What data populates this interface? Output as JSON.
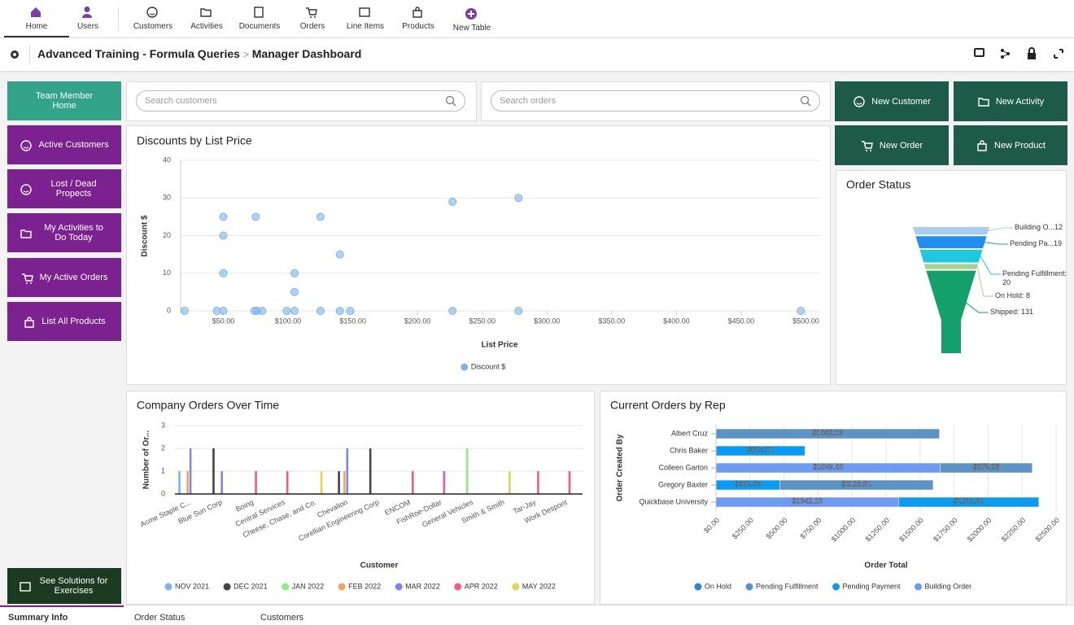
{
  "nav": {
    "items": [
      "Home",
      "Users",
      "Customers",
      "Activities",
      "Documents",
      "Orders",
      "Line Items",
      "Products",
      "New Table"
    ]
  },
  "header": {
    "app_title": "Advanced Training - Formula Queries",
    "separator": ">",
    "page_title": "Manager Dashboard"
  },
  "sidebar": {
    "buttons": [
      "Team Member Home",
      "Active Customers",
      "Lost / Dead Propects",
      "My Activities to Do Today",
      "My Active Orders",
      "List All Products"
    ],
    "footer_button": "See Solutions for Exercises"
  },
  "search": {
    "placeholders": [
      "Search customers",
      "Search orders"
    ]
  },
  "actions": [
    "New Customer",
    "New Activity",
    "New Order",
    "New Product"
  ],
  "charts": [
    {
      "type": "scatter",
      "title": "Discounts by List Price",
      "x_label": "List Price",
      "y_label": "Discount $",
      "series": [
        {
          "name": "Discount $",
          "color": "#7cb5ec",
          "x": [
            20,
            45,
            50,
            74,
            76,
            80,
            99,
            105,
            125,
            140,
            148,
            227,
            278,
            496,
            50,
            50,
            50,
            75,
            105,
            105,
            125,
            140,
            227,
            278
          ],
          "y": [
            0,
            0,
            0,
            0,
            0,
            0,
            0,
            0,
            0,
            0,
            0,
            0,
            0,
            0,
            25,
            20,
            10,
            25,
            10,
            5,
            25,
            15,
            29,
            30
          ]
        }
      ],
      "xlim": [
        17,
        511
      ],
      "xticks": [
        {
          "value": 50,
          "label": "$50.00"
        },
        {
          "value": 100,
          "label": "$100.00"
        },
        {
          "value": 150,
          "label": "$150.00"
        },
        {
          "value": 200,
          "label": "$200.00"
        },
        {
          "value": 250,
          "label": "$250.00"
        },
        {
          "value": 300,
          "label": "$300.00"
        },
        {
          "value": 350,
          "label": "$350.00"
        },
        {
          "value": 400,
          "label": "$400.00"
        },
        {
          "value": 450,
          "label": "$450.00"
        },
        {
          "value": 500,
          "label": "$500.00"
        }
      ],
      "ylim": [
        0,
        40
      ],
      "yticks": [
        0,
        10,
        20,
        30,
        40
      ],
      "grid": true
    },
    {
      "type": "funnel",
      "title": "Order Status",
      "values": [
        12,
        19,
        20,
        8,
        131
      ],
      "value_labels": [
        "Building O...12",
        "Pending Pa...19",
        "Pending Fulfillment: 20",
        "On Hold: 8",
        "Shipped: 131"
      ],
      "colors": [
        "#a8cdf0",
        "#1e8ff0",
        "#1ec8e0",
        "#a8d08d",
        "#14a06a"
      ]
    },
    {
      "type": "column",
      "title": "Company Orders Over Time",
      "x_label": "Customer",
      "y_label": "Number of Or...",
      "categories": [
        "Acme Staple C...",
        "Blue Sun Corp",
        "Boing",
        "Central Services",
        "Cheese, Chase, and Co.",
        "Chevalion",
        "Corellian Engineering Corp",
        "ENCOM",
        "FishRoe-Dollar",
        "General Vehicles",
        "Smith & Smith",
        "Tar-Jay",
        "Work Despont"
      ],
      "ylim": [
        0,
        3
      ],
      "yticks": [
        0,
        1,
        2,
        3
      ],
      "grid": true,
      "series": [
        {
          "name": "NOV 2021",
          "color": "#7cb5ec",
          "values": [
            1,
            null,
            null,
            null,
            null,
            null,
            null,
            null,
            null,
            null,
            null,
            null,
            null
          ]
        },
        {
          "name": "DEC 2021",
          "color": "#434348",
          "values": [
            null,
            2,
            null,
            null,
            null,
            1,
            2,
            null,
            null,
            null,
            null,
            null,
            null
          ]
        },
        {
          "name": "JAN 2022",
          "color": "#90ed7d",
          "values": [
            null,
            null,
            null,
            null,
            null,
            null,
            null,
            null,
            null,
            2,
            null,
            null,
            null
          ]
        },
        {
          "name": "FEB 2022",
          "color": "#f7a35c",
          "values": [
            1,
            null,
            null,
            null,
            null,
            1,
            null,
            null,
            null,
            null,
            null,
            null,
            null
          ]
        },
        {
          "name": "MAR 2022",
          "color": "#8085e9",
          "values": [
            2,
            1,
            null,
            null,
            null,
            2,
            null,
            null,
            null,
            null,
            null,
            null,
            null
          ]
        },
        {
          "name": "APR 2022",
          "color": "#f15c80",
          "values": [
            null,
            null,
            1,
            1,
            null,
            null,
            null,
            1,
            1,
            null,
            null,
            1,
            1
          ]
        },
        {
          "name": "MAY 2022",
          "color": "#e4d354",
          "values": [
            null,
            null,
            null,
            null,
            1,
            null,
            null,
            null,
            null,
            null,
            1,
            null,
            null
          ]
        }
      ]
    },
    {
      "type": "stacked_bar",
      "title": "Current Orders by Rep",
      "x_label": "Order Total",
      "y_label": "Order Created By",
      "categories": [
        "Albert Cruz",
        "Chris Baker",
        "Colleen Garton",
        "Gregory Baxter",
        "Quickbase University"
      ],
      "xlim": [
        0,
        2500
      ],
      "xticks": [
        {
          "value": 0,
          "label": "$0.00"
        },
        {
          "value": 250,
          "label": "$250.00"
        },
        {
          "value": 500,
          "label": "$500.00"
        },
        {
          "value": 750,
          "label": "$750.00"
        },
        {
          "value": 1000,
          "label": "$1000.00"
        },
        {
          "value": 1250,
          "label": "$1250.00"
        },
        {
          "value": 1500,
          "label": "$1500.00"
        },
        {
          "value": 1750,
          "label": "$1750.00"
        },
        {
          "value": 2000,
          "label": "$2000.00"
        },
        {
          "value": 2250,
          "label": "$2250.00"
        },
        {
          "value": 2500,
          "label": "$2500.00"
        }
      ],
      "grid": true,
      "series": [
        {
          "name": "On Hold",
          "color": "#2b86c5",
          "values": [
            null,
            null,
            null,
            null,
            null
          ],
          "value_labels": [
            null,
            null,
            null,
            null,
            null
          ]
        },
        {
          "name": "Pending Fulfillment",
          "color": "#5b93c7",
          "values": [
            1642.18,
            null,
            675.28,
            1126.81,
            null
          ],
          "value_labels": [
            "$1642.18",
            null,
            "$675.28",
            "$1126.81",
            null
          ]
        },
        {
          "name": "Pending Payment",
          "color": "#0b9cf2",
          "values": [
            null,
            654.31,
            null,
            469.64,
            1031.31
          ],
          "value_labels": [
            null,
            "$654.31",
            null,
            "$469.64",
            "$1031.31"
          ]
        },
        {
          "name": "Building Order",
          "color": "#6d9bf2",
          "values": [
            null,
            null,
            1649.63,
            null,
            1342.13
          ],
          "value_labels": [
            null,
            null,
            "$1649.63",
            null,
            "$1342.13"
          ]
        }
      ]
    }
  ],
  "tabs": [
    "Summary Info",
    "Order Status",
    "Customers"
  ]
}
